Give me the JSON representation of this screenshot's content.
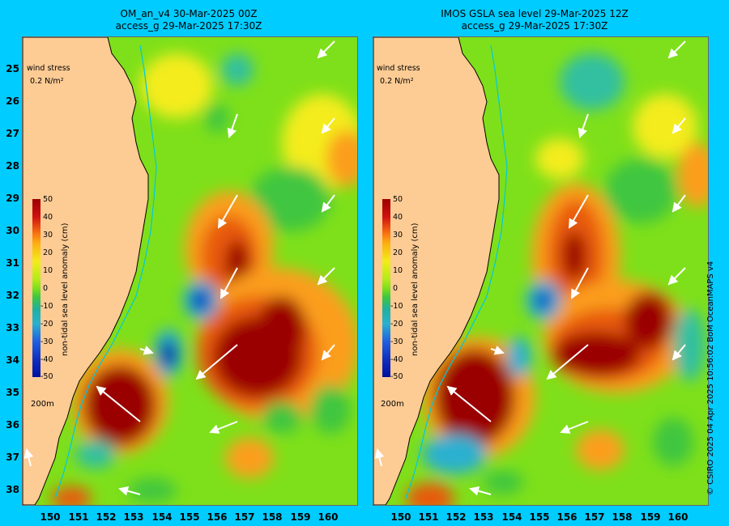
{
  "panels": [
    {
      "title_line1": "OM_an_v4  30-Mar-2025 00Z",
      "title_line2": "access_g 29-Mar-2025 17:30Z"
    },
    {
      "title_line1": "IMOS GSLA sea level  29-Mar-2025 12Z",
      "title_line2": "access_g 29-Mar-2025 17:30Z"
    }
  ],
  "legend": {
    "wind_stress_label": "wind stress",
    "wind_stress_scale": "0.2 N/m²",
    "depth_contour_label": "200m"
  },
  "colorbar": {
    "label": "non-tidal sea level anomaly (cm)",
    "ticks": [
      "50",
      "40",
      "30",
      "20",
      "10",
      "0",
      "-10",
      "-20",
      "-30",
      "-40",
      "-50"
    ]
  },
  "axes": {
    "x_ticks": [
      "150",
      "151",
      "152",
      "153",
      "154",
      "155",
      "156",
      "157",
      "158",
      "159",
      "160"
    ],
    "y_ticks": [
      "25",
      "26",
      "27",
      "28",
      "29",
      "30",
      "31",
      "32",
      "33",
      "34",
      "35",
      "36",
      "37",
      "38"
    ]
  },
  "copyright": "© CSIRO 2025   04 Apr 2025 10:56:02 BoM OceanMAPS v4",
  "colors": {
    "land": "#fdcb94",
    "background": "#00ccff",
    "high": "#9b0000",
    "low": "#0010a0",
    "neutral": "#7ee01a"
  }
}
